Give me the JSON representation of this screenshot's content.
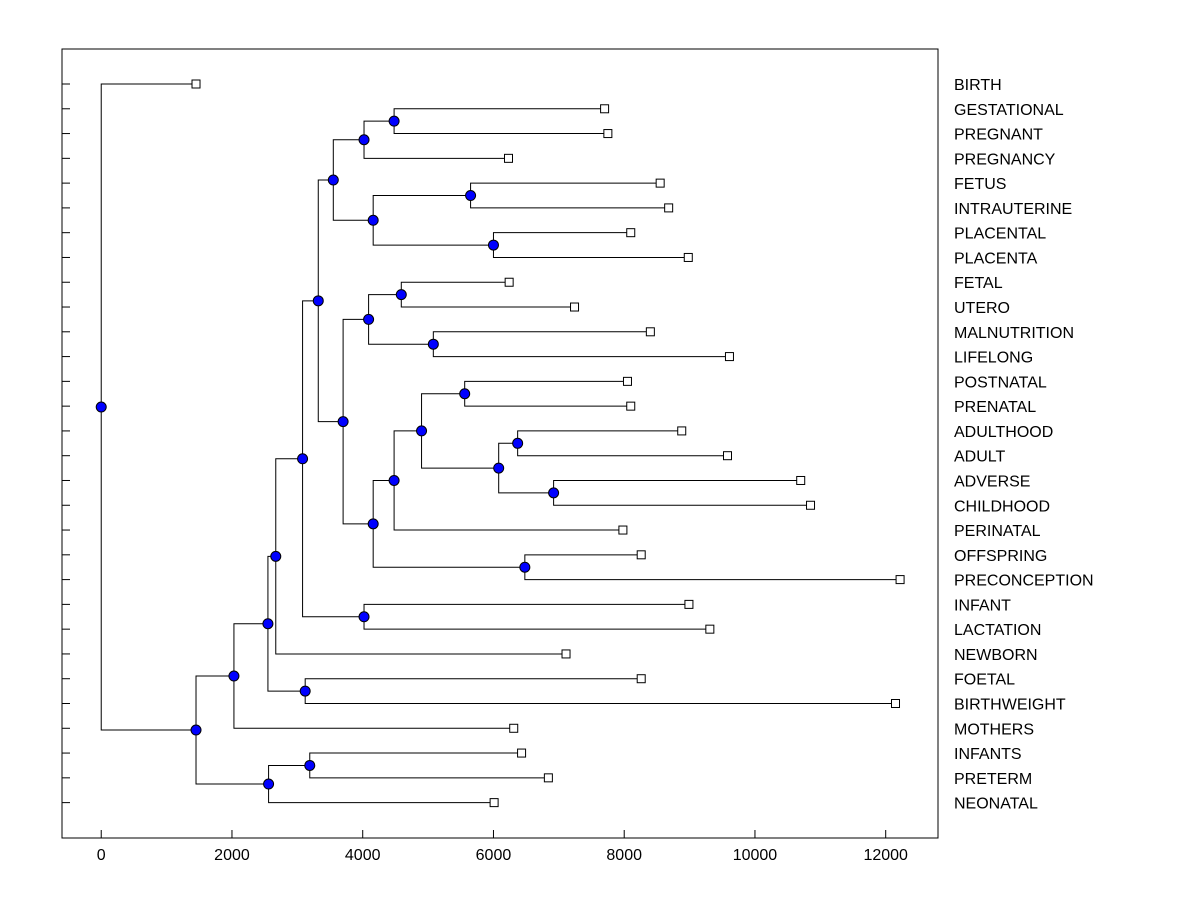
{
  "chart_data": {
    "type": "dendrogram",
    "title": "",
    "xlabel": "",
    "ylabel": "",
    "xlim": [
      -600,
      12800
    ],
    "x_ticks": [
      0,
      2000,
      4000,
      6000,
      8000,
      10000,
      12000
    ],
    "x_tick_labels": [
      "0",
      "2000",
      "4000",
      "6000",
      "8000",
      "10000",
      "12000"
    ],
    "node_color": "#0000ff",
    "leaf_marker_color": "#ffffff",
    "leaves": [
      {
        "label": "BIRTH",
        "x": 1450
      },
      {
        "label": "GESTATIONAL",
        "x": 7700
      },
      {
        "label": "PREGNANT",
        "x": 7750
      },
      {
        "label": "PREGNANCY",
        "x": 6230
      },
      {
        "label": "FETUS",
        "x": 8550
      },
      {
        "label": "INTRAUTERINE",
        "x": 8680
      },
      {
        "label": "PLACENTAL",
        "x": 8100
      },
      {
        "label": "PLACENTA",
        "x": 8980
      },
      {
        "label": "FETAL",
        "x": 6240
      },
      {
        "label": "UTERO",
        "x": 7240
      },
      {
        "label": "MALNUTRITION",
        "x": 8400
      },
      {
        "label": "LIFELONG",
        "x": 9610
      },
      {
        "label": "POSTNATAL",
        "x": 8050
      },
      {
        "label": "PRENATAL",
        "x": 8100
      },
      {
        "label": "ADULTHOOD",
        "x": 8880
      },
      {
        "label": "ADULT",
        "x": 9580
      },
      {
        "label": "ADVERSE",
        "x": 10700
      },
      {
        "label": "CHILDHOOD",
        "x": 10850
      },
      {
        "label": "PERINATAL",
        "x": 7980
      },
      {
        "label": "OFFSPRING",
        "x": 8260
      },
      {
        "label": "PRECONCEPTION",
        "x": 12220
      },
      {
        "label": "INFANT",
        "x": 8990
      },
      {
        "label": "LACTATION",
        "x": 9310
      },
      {
        "label": "NEWBORN",
        "x": 7110
      },
      {
        "label": "FOETAL",
        "x": 8260
      },
      {
        "label": "BIRTHWEIGHT",
        "x": 12150
      },
      {
        "label": "MOTHERS",
        "x": 6310
      },
      {
        "label": "INFANTS",
        "x": 6430
      },
      {
        "label": "PRETERM",
        "x": 6840
      },
      {
        "label": "NEONATAL",
        "x": 6010
      }
    ],
    "merges": [
      {
        "id": "n1",
        "x": 4480,
        "children": [
          1,
          2
        ]
      },
      {
        "id": "n2",
        "x": 4020,
        "children": [
          "n1",
          3
        ]
      },
      {
        "id": "n3",
        "x": 5650,
        "children": [
          4,
          5
        ]
      },
      {
        "id": "n4",
        "x": 6000,
        "children": [
          6,
          7
        ]
      },
      {
        "id": "n5",
        "x": 4160,
        "children": [
          "n3",
          "n4"
        ]
      },
      {
        "id": "n6",
        "x": 3550,
        "children": [
          "n2",
          "n5"
        ]
      },
      {
        "id": "n7",
        "x": 4590,
        "children": [
          8,
          9
        ]
      },
      {
        "id": "n8",
        "x": 5080,
        "children": [
          10,
          11
        ]
      },
      {
        "id": "n9",
        "x": 4090,
        "children": [
          "n7",
          "n8"
        ]
      },
      {
        "id": "n10",
        "x": 5560,
        "children": [
          12,
          13
        ]
      },
      {
        "id": "n11",
        "x": 6370,
        "children": [
          14,
          15
        ]
      },
      {
        "id": "n12",
        "x": 6920,
        "children": [
          16,
          17
        ]
      },
      {
        "id": "n13",
        "x": 6080,
        "children": [
          "n11",
          "n12"
        ]
      },
      {
        "id": "n14",
        "x": 4900,
        "children": [
          "n10",
          "n13"
        ]
      },
      {
        "id": "n15",
        "x": 4480,
        "children": [
          "n14",
          18
        ]
      },
      {
        "id": "n16",
        "x": 6480,
        "children": [
          19,
          20
        ]
      },
      {
        "id": "n17",
        "x": 4160,
        "children": [
          "n15",
          "n16"
        ]
      },
      {
        "id": "n18",
        "x": 3700,
        "children": [
          "n9",
          "n17"
        ]
      },
      {
        "id": "n19",
        "x": 3320,
        "children": [
          "n6",
          "n18"
        ]
      },
      {
        "id": "n20",
        "x": 4020,
        "children": [
          21,
          22
        ]
      },
      {
        "id": "n21",
        "x": 3080,
        "children": [
          "n19",
          "n20"
        ]
      },
      {
        "id": "n22",
        "x": 2670,
        "children": [
          "n21",
          23
        ]
      },
      {
        "id": "n23",
        "x": 3120,
        "children": [
          24,
          25
        ]
      },
      {
        "id": "n24",
        "x": 2550,
        "children": [
          "n22",
          "n23"
        ]
      },
      {
        "id": "n25",
        "x": 2030,
        "children": [
          "n24",
          26
        ]
      },
      {
        "id": "n26",
        "x": 3190,
        "children": [
          27,
          28
        ]
      },
      {
        "id": "n27",
        "x": 2560,
        "children": [
          "n26",
          29
        ]
      },
      {
        "id": "n28",
        "x": 1450,
        "children": [
          "n25",
          "n27"
        ]
      },
      {
        "id": "n29",
        "x": 0,
        "children": [
          0,
          "n28"
        ]
      }
    ]
  }
}
